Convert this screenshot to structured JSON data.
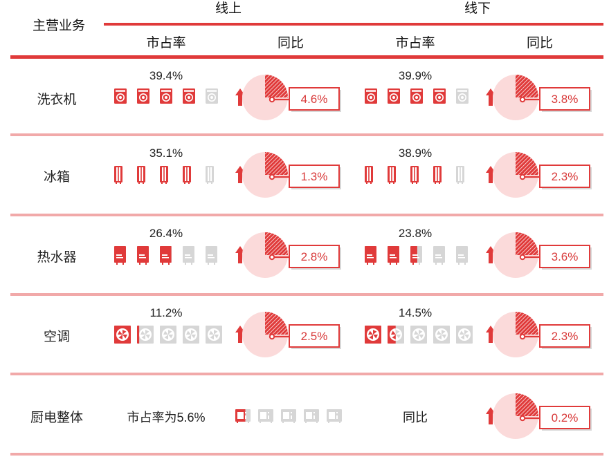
{
  "header": {
    "main_business": "主营业务",
    "online": "线上",
    "offline": "线下",
    "market_share": "市占率",
    "yoy": "同比"
  },
  "colors": {
    "accent": "#e03a3a",
    "divider": "#f1a9a9",
    "pie_light": "#fbdada",
    "inactive_icon": "#d6d6d6"
  },
  "chart_data": {
    "type": "table",
    "columns": [
      "市占率",
      "同比",
      "市占率",
      "同比"
    ],
    "rows": [
      {
        "category": "洗衣机",
        "icon": "washing-machine-icon",
        "online": {
          "share": "39.4%",
          "share_value": 39.4,
          "yoy": "4.6%",
          "yoy_value": 4.6
        },
        "offline": {
          "share": "39.9%",
          "share_value": 39.9,
          "yoy": "3.8%",
          "yoy_value": 3.8
        }
      },
      {
        "category": "冰箱",
        "icon": "refrigerator-icon",
        "online": {
          "share": "35.1%",
          "share_value": 35.1,
          "yoy": "1.3%",
          "yoy_value": 1.3
        },
        "offline": {
          "share": "38.9%",
          "share_value": 38.9,
          "yoy": "2.3%",
          "yoy_value": 2.3
        }
      },
      {
        "category": "热水器",
        "icon": "water-heater-icon",
        "online": {
          "share": "26.4%",
          "share_value": 26.4,
          "yoy": "2.8%",
          "yoy_value": 2.8
        },
        "offline": {
          "share": "23.8%",
          "share_value": 23.8,
          "yoy": "3.6%",
          "yoy_value": 3.6
        }
      },
      {
        "category": "空调",
        "icon": "air-conditioner-fan-icon",
        "online": {
          "share": "11.2%",
          "share_value": 11.2,
          "yoy": "2.5%",
          "yoy_value": 2.5
        },
        "offline": {
          "share": "14.5%",
          "share_value": 14.5,
          "yoy": "2.3%",
          "yoy_value": 2.3
        }
      }
    ],
    "kitchen": {
      "category": "厨电整体",
      "icon": "oven-icon",
      "share_label": "市占率为5.6%",
      "share_value": 5.6,
      "yoy_label": "同比",
      "yoy": "0.2%",
      "yoy_value": 0.2
    }
  }
}
